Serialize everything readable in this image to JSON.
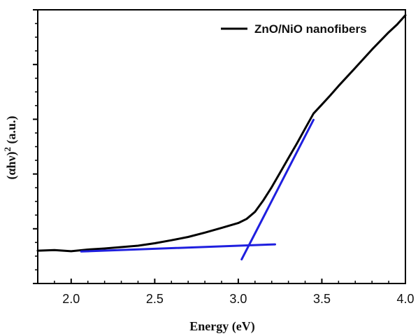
{
  "chart_data": {
    "type": "line",
    "xlabel": "Energy (eV)",
    "ylabel": "(αhν)",
    "ylabel_superscript": "2",
    "ylabel_suffix": " (a.u.)",
    "xlim": [
      1.8,
      4.0
    ],
    "ylim": [
      0,
      1
    ],
    "xticks": [
      2.0,
      2.5,
      3.0,
      3.5,
      4.0
    ],
    "xtick_labels": [
      "2.0",
      "2.5",
      "3.0",
      "3.5",
      "4.0"
    ],
    "y_tick_labels_shown": false,
    "grid": false,
    "legend_position": "top-right",
    "series": [
      {
        "name": "ZnO/NiO nanofibers",
        "color": "#000000",
        "x": [
          1.8,
          1.9,
          2.0,
          2.1,
          2.2,
          2.3,
          2.4,
          2.5,
          2.6,
          2.7,
          2.8,
          2.9,
          3.0,
          3.05,
          3.1,
          3.15,
          3.2,
          3.25,
          3.3,
          3.35,
          3.4,
          3.45,
          3.5,
          3.55,
          3.6,
          3.7,
          3.8,
          3.9,
          3.95,
          4.0
        ],
        "y": [
          0.12,
          0.122,
          0.118,
          0.124,
          0.128,
          0.133,
          0.138,
          0.147,
          0.158,
          0.17,
          0.186,
          0.203,
          0.221,
          0.236,
          0.262,
          0.304,
          0.352,
          0.405,
          0.458,
          0.511,
          0.566,
          0.621,
          0.654,
          0.687,
          0.722,
          0.788,
          0.855,
          0.918,
          0.946,
          0.98
        ]
      }
    ],
    "fit_lines": [
      {
        "color": "#1f1fdf",
        "x": [
          2.06,
          3.22
        ],
        "y": [
          0.117,
          0.143
        ]
      },
      {
        "color": "#1f1fdf",
        "x": [
          3.02,
          3.45
        ],
        "y": [
          0.088,
          0.598
        ]
      }
    ],
    "legend": {
      "label": "ZnO/NiO nanofibers",
      "color": "#000000"
    }
  }
}
